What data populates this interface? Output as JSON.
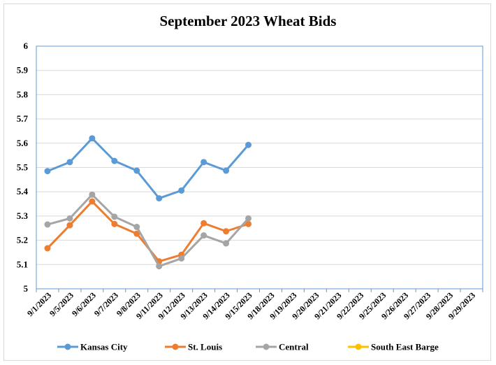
{
  "chart_data": {
    "type": "line",
    "title": "September 2023 Wheat Bids",
    "xlabel": "",
    "ylabel": "",
    "ylim": [
      5,
      6
    ],
    "ytick_step": 0.1,
    "grid": true,
    "legend_position": "bottom",
    "categories": [
      "9/1/2023",
      "9/5/2023",
      "9/6/2023",
      "9/7/2023",
      "9/8/2023",
      "9/11/2023",
      "9/12/2023",
      "9/13/2023",
      "9/14/2023",
      "9/15/2023",
      "9/18/2023",
      "9/19/2023",
      "9/20/2023",
      "9/21/2023",
      "9/22/2023",
      "9/25/2023",
      "9/26/2023",
      "9/27/2023",
      "9/28/2023",
      "9/29/2023"
    ],
    "yticks": [
      "5",
      "5.1",
      "5.2",
      "5.3",
      "5.4",
      "5.5",
      "5.6",
      "5.7",
      "5.8",
      "5.9",
      "6"
    ],
    "series": [
      {
        "name": "Kansas City",
        "color": "#5b9bd5",
        "values": [
          5.485,
          5.522,
          5.62,
          5.527,
          5.487,
          5.373,
          5.405,
          5.522,
          5.487,
          5.593,
          null,
          null,
          null,
          null,
          null,
          null,
          null,
          null,
          null,
          null
        ]
      },
      {
        "name": "St. Louis",
        "color": "#ed7d31",
        "values": [
          5.167,
          5.262,
          5.36,
          5.267,
          5.227,
          5.113,
          5.14,
          5.27,
          5.237,
          5.267,
          null,
          null,
          null,
          null,
          null,
          null,
          null,
          null,
          null,
          null
        ]
      },
      {
        "name": "Central",
        "color": "#a5a5a5",
        "values": [
          5.265,
          5.29,
          5.388,
          5.297,
          5.255,
          5.093,
          5.125,
          5.22,
          5.187,
          5.29,
          null,
          null,
          null,
          null,
          null,
          null,
          null,
          null,
          null,
          null
        ]
      },
      {
        "name": "South East Barge",
        "color": "#ffc000",
        "values": [
          null,
          null,
          null,
          null,
          null,
          null,
          null,
          null,
          null,
          null,
          null,
          null,
          null,
          null,
          null,
          null,
          null,
          null,
          null,
          null
        ]
      }
    ]
  }
}
